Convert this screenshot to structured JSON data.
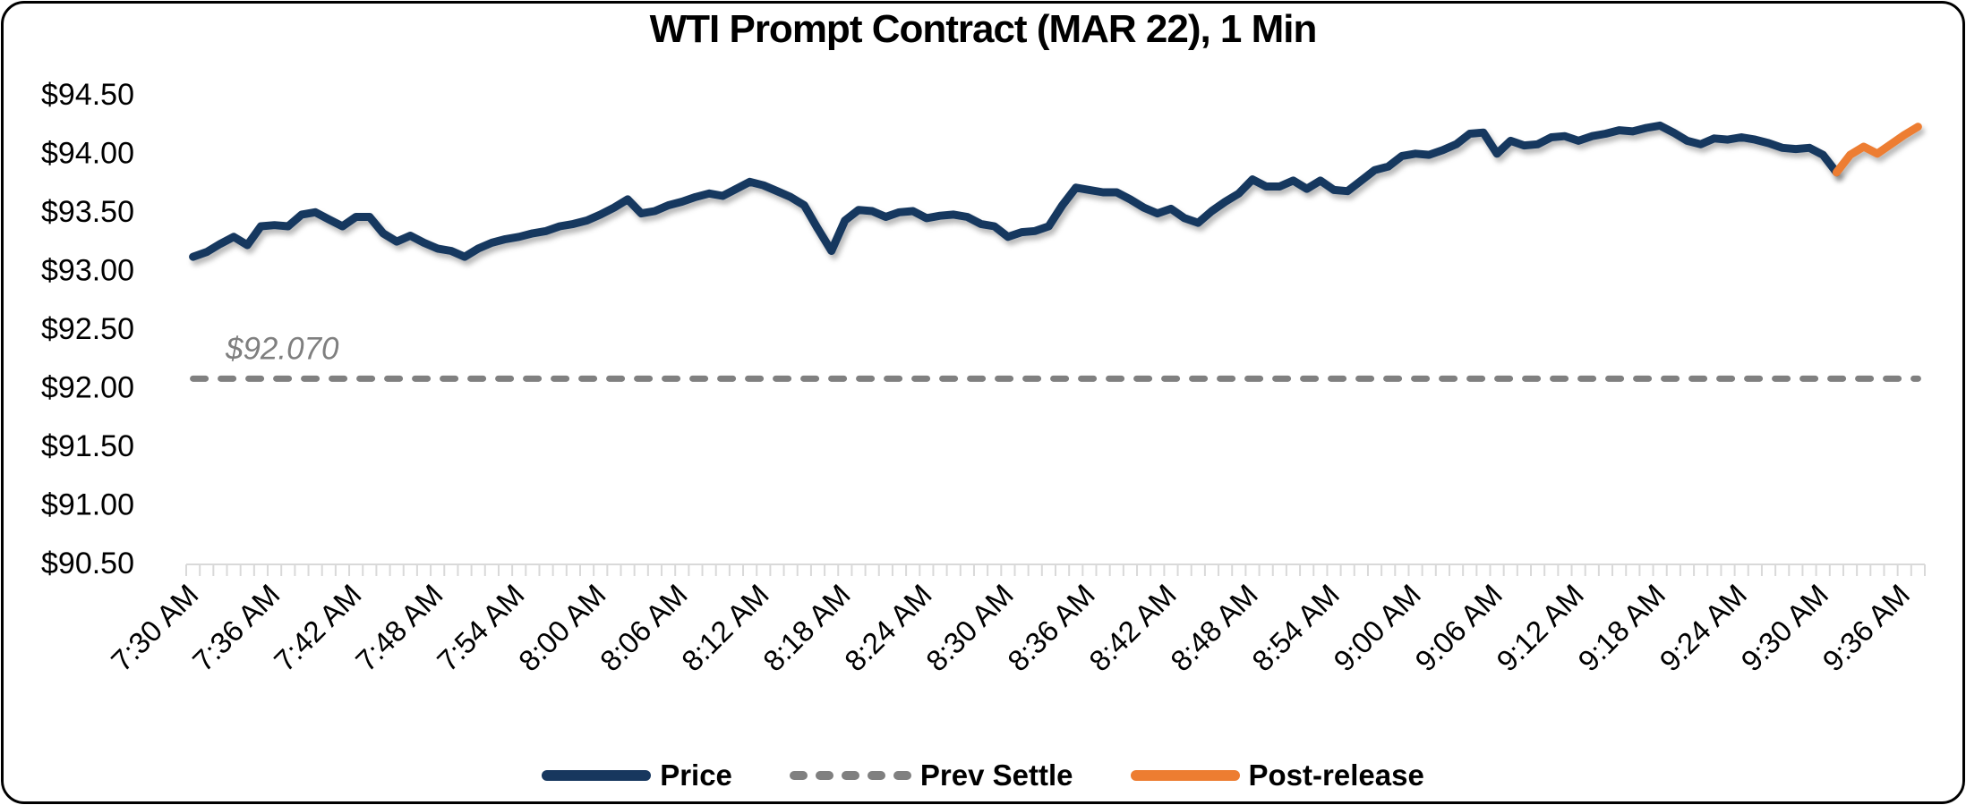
{
  "chart_data": {
    "type": "line",
    "title": "WTI Prompt Contract (MAR 22), 1 Min",
    "x_tick_labels": [
      "7:30 AM",
      "7:36 AM",
      "7:42 AM",
      "7:48 AM",
      "7:54 AM",
      "8:00 AM",
      "8:06 AM",
      "8:12 AM",
      "8:18 AM",
      "8:24 AM",
      "8:30 AM",
      "8:36 AM",
      "8:42 AM",
      "8:48 AM",
      "8:54 AM",
      "9:00 AM",
      "9:06 AM",
      "9:12 AM",
      "9:18 AM",
      "9:24 AM",
      "9:30 AM",
      "9:36 AM"
    ],
    "x_minutes_per_point": 1,
    "x_label_every_n_points": 6,
    "n_categories": 128,
    "ylim": [
      90.5,
      94.5
    ],
    "y_ticks": [
      "$90.50",
      "$91.00",
      "$91.50",
      "$92.00",
      "$92.50",
      "$93.00",
      "$93.50",
      "$94.00",
      "$94.50"
    ],
    "y_tick_values": [
      90.5,
      91.0,
      91.5,
      92.0,
      92.5,
      93.0,
      93.5,
      94.0,
      94.5
    ],
    "grid": false,
    "legend_position": "bottom",
    "prev_settle": {
      "value": 92.07,
      "annotation": "$92.070",
      "color": "#808080",
      "style": "dashed"
    },
    "series": [
      {
        "name": "Price",
        "color": "#17375E",
        "start_index": 0,
        "values": [
          93.11,
          93.15,
          93.22,
          93.28,
          93.21,
          93.37,
          93.38,
          93.37,
          93.47,
          93.49,
          93.43,
          93.37,
          93.45,
          93.45,
          93.31,
          93.24,
          93.29,
          93.23,
          93.18,
          93.16,
          93.11,
          93.18,
          93.23,
          93.26,
          93.28,
          93.31,
          93.33,
          93.37,
          93.39,
          93.42,
          93.47,
          93.53,
          93.6,
          93.48,
          93.5,
          93.55,
          93.58,
          93.62,
          93.65,
          93.63,
          93.69,
          93.75,
          93.72,
          93.67,
          93.62,
          93.55,
          93.35,
          93.16,
          93.42,
          93.51,
          93.5,
          93.45,
          93.49,
          93.5,
          93.44,
          93.46,
          93.47,
          93.45,
          93.39,
          93.37,
          93.28,
          93.32,
          93.33,
          93.37,
          93.55,
          93.7,
          93.68,
          93.66,
          93.66,
          93.6,
          93.53,
          93.48,
          93.52,
          93.44,
          93.4,
          93.5,
          93.58,
          93.65,
          93.77,
          93.71,
          93.71,
          93.76,
          93.69,
          93.76,
          93.68,
          93.67,
          93.76,
          93.85,
          93.88,
          93.97,
          93.99,
          93.98,
          94.02,
          94.07,
          94.16,
          94.17,
          93.99,
          94.1,
          94.06,
          94.07,
          94.13,
          94.14,
          94.1,
          94.14,
          94.16,
          94.19,
          94.18,
          94.21,
          94.23,
          94.17,
          94.1,
          94.07,
          94.12,
          94.11,
          94.13,
          94.11,
          94.08,
          94.04,
          94.03,
          94.04,
          93.98,
          93.83
        ]
      },
      {
        "name": "Post-release",
        "color": "#ED7D31",
        "start_index": 121,
        "values": [
          93.83,
          93.98,
          94.05,
          93.99,
          94.07,
          94.15,
          94.22
        ]
      }
    ],
    "legend": [
      {
        "label": "Price",
        "color": "#17375E",
        "style": "solid"
      },
      {
        "label": "Prev Settle",
        "color": "#808080",
        "style": "dashed"
      },
      {
        "label": "Post-release",
        "color": "#ED7D31",
        "style": "solid"
      }
    ]
  }
}
